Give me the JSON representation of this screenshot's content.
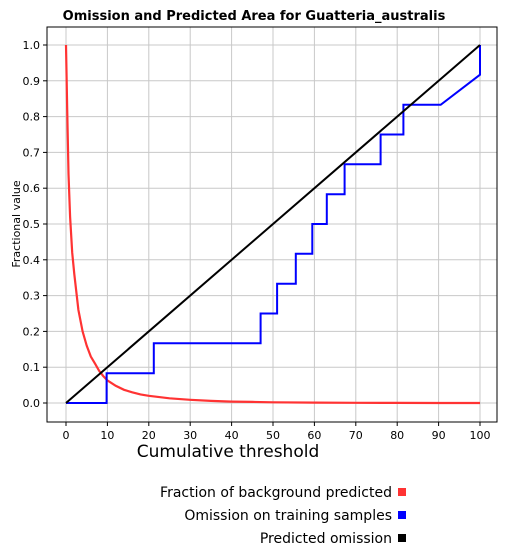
{
  "chart_data": {
    "type": "line",
    "title": "Omission and Predicted Area for Guatteria_australis",
    "xlabel": "Cumulative threshold",
    "ylabel": "Fractional value",
    "xlim": [
      0,
      100
    ],
    "ylim": [
      0,
      1
    ],
    "xticks": [
      "0",
      "10",
      "20",
      "30",
      "40",
      "50",
      "60",
      "70",
      "80",
      "90",
      "100"
    ],
    "yticks": [
      "0.0",
      "0.1",
      "0.2",
      "0.3",
      "0.4",
      "0.5",
      "0.6",
      "0.7",
      "0.8",
      "0.9",
      "1.0"
    ],
    "grid": true,
    "legend_position": "bottom-right",
    "series": [
      {
        "name": "Fraction of background predicted",
        "color": "#ff3333",
        "x": [
          0,
          0.3,
          0.6,
          1,
          1.5,
          2,
          3,
          4,
          5,
          6,
          7,
          8,
          9,
          10,
          12,
          14,
          16,
          18,
          20,
          25,
          30,
          35,
          40,
          45,
          50,
          60,
          70,
          80,
          90,
          100
        ],
        "y": [
          1.0,
          0.82,
          0.64,
          0.52,
          0.42,
          0.36,
          0.26,
          0.2,
          0.16,
          0.13,
          0.11,
          0.09,
          0.075,
          0.063,
          0.048,
          0.037,
          0.03,
          0.024,
          0.02,
          0.013,
          0.009,
          0.006,
          0.004,
          0.003,
          0.002,
          0.001,
          0.0005,
          0.0003,
          0.0001,
          0.0
        ]
      },
      {
        "name": "Omission on training samples",
        "color": "#0000ff",
        "x": [
          0,
          9.8,
          9.8,
          21.2,
          21.2,
          47,
          47,
          51,
          51,
          55.5,
          55.5,
          59.5,
          59.5,
          63,
          63,
          67.3,
          67.3,
          76,
          76,
          81.5,
          81.5,
          90.5,
          100,
          100
        ],
        "y": [
          0,
          0,
          0.083,
          0.083,
          0.167,
          0.167,
          0.25,
          0.25,
          0.333,
          0.333,
          0.417,
          0.417,
          0.5,
          0.5,
          0.583,
          0.583,
          0.667,
          0.667,
          0.75,
          0.75,
          0.833,
          0.833,
          0.917,
          1.0
        ]
      },
      {
        "name": "Predicted omission",
        "color": "#000000",
        "x": [
          0,
          100
        ],
        "y": [
          0,
          1
        ]
      }
    ]
  }
}
